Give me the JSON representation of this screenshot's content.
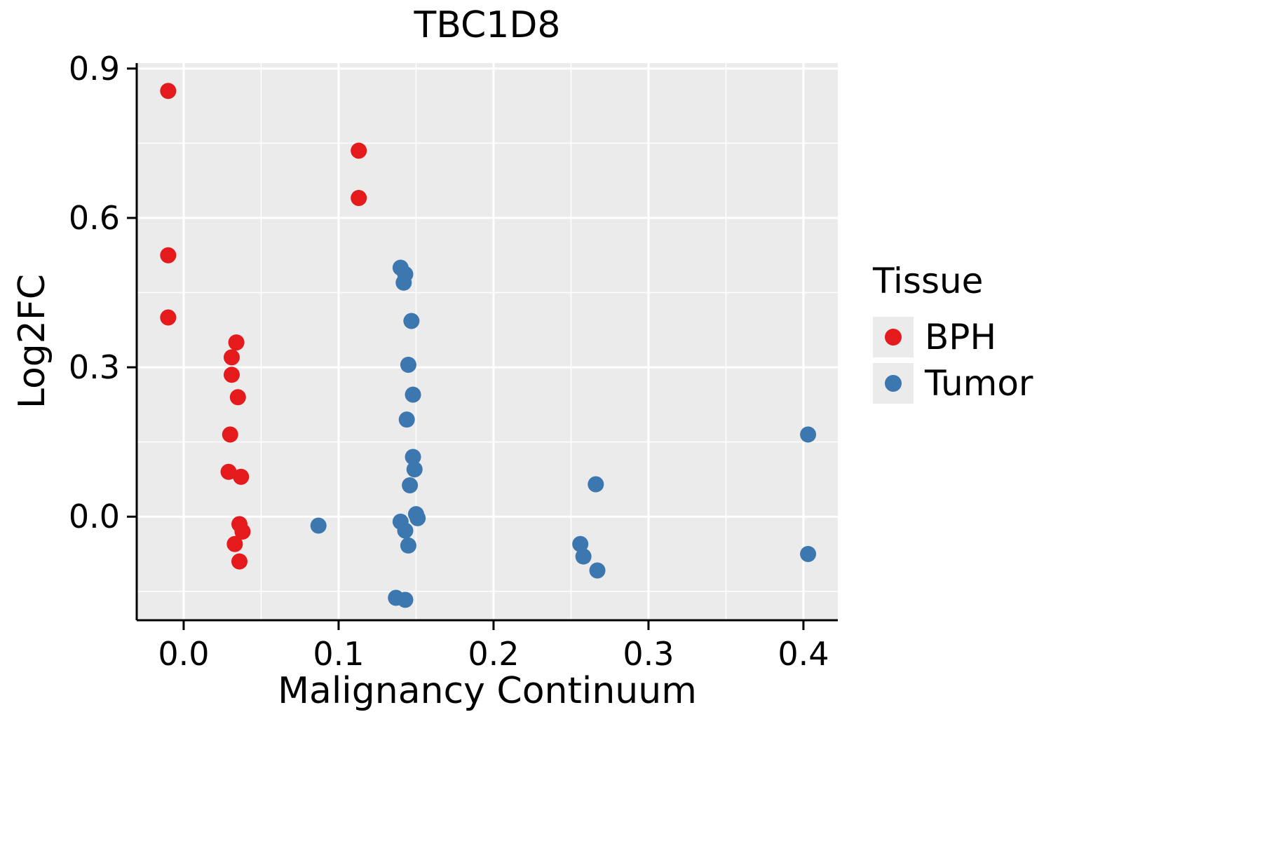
{
  "chart_data": {
    "type": "scatter",
    "title": "TBC1D8",
    "xlabel": "Malignancy Continuum",
    "ylabel": "Log2FC",
    "xlim": [
      -0.0303,
      0.4222
    ],
    "ylim": [
      -0.208,
      0.911
    ],
    "xticks": [
      0.0,
      0.1,
      0.2,
      0.3,
      0.4
    ],
    "xtick_labels": [
      "0.0",
      "0.1",
      "0.2",
      "0.3",
      "0.4"
    ],
    "yticks": [
      0.0,
      0.3,
      0.6,
      0.9
    ],
    "ytick_labels": [
      "0.0",
      "0.3",
      "0.6",
      "0.9"
    ],
    "grid": true,
    "panel_color": "#ebebeb",
    "grid_color": "#ffffff",
    "legend": {
      "title": "Tissue",
      "position": "right"
    },
    "series": [
      {
        "name": "BPH",
        "color": "#e41a1c",
        "points": [
          [
            -0.01,
            0.855
          ],
          [
            -0.01,
            0.525
          ],
          [
            -0.01,
            0.4
          ],
          [
            0.113,
            0.735
          ],
          [
            0.113,
            0.64
          ],
          [
            0.034,
            0.35
          ],
          [
            0.031,
            0.32
          ],
          [
            0.031,
            0.285
          ],
          [
            0.035,
            0.24
          ],
          [
            0.03,
            0.165
          ],
          [
            0.029,
            0.09
          ],
          [
            0.037,
            0.08
          ],
          [
            0.036,
            -0.015
          ],
          [
            0.038,
            -0.03
          ],
          [
            0.033,
            -0.055
          ],
          [
            0.036,
            -0.09
          ]
        ]
      },
      {
        "name": "Tumor",
        "color": "#3d77b0",
        "points": [
          [
            0.087,
            -0.018
          ],
          [
            0.14,
            0.5
          ],
          [
            0.143,
            0.487
          ],
          [
            0.142,
            0.47
          ],
          [
            0.147,
            0.393
          ],
          [
            0.145,
            0.305
          ],
          [
            0.148,
            0.245
          ],
          [
            0.144,
            0.195
          ],
          [
            0.148,
            0.12
          ],
          [
            0.149,
            0.095
          ],
          [
            0.146,
            0.063
          ],
          [
            0.15,
            0.005
          ],
          [
            0.151,
            -0.003
          ],
          [
            0.14,
            -0.01
          ],
          [
            0.143,
            -0.028
          ],
          [
            0.145,
            -0.058
          ],
          [
            0.137,
            -0.163
          ],
          [
            0.143,
            -0.167
          ],
          [
            0.266,
            0.065
          ],
          [
            0.256,
            -0.055
          ],
          [
            0.258,
            -0.08
          ],
          [
            0.267,
            -0.108
          ],
          [
            0.403,
            0.165
          ],
          [
            0.403,
            -0.075
          ]
        ]
      }
    ]
  }
}
